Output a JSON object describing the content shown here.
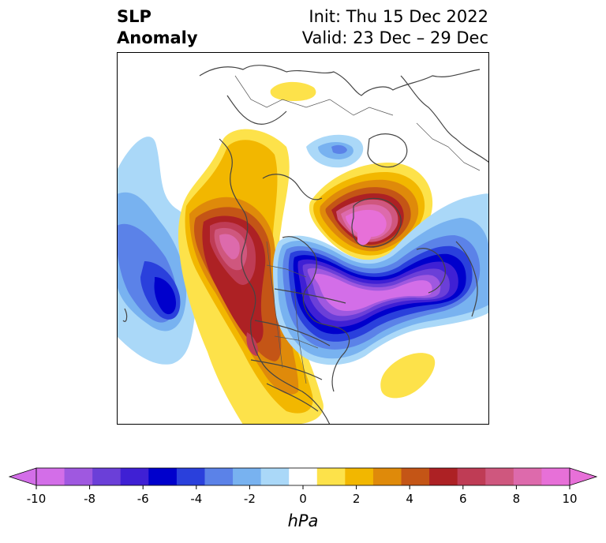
{
  "title": {
    "left_line1": "SLP",
    "left_line2": "Anomaly",
    "init": "Init: Thu 15 Dec 2022",
    "valid": "Valid: 23 Dec – 29 Dec"
  },
  "colorbar": {
    "unit_label": "hPa",
    "ticks": [
      "-10",
      "-8",
      "-6",
      "-4",
      "-2",
      "0",
      "2",
      "4",
      "6",
      "8",
      "10"
    ],
    "tick_values": [
      -10,
      -8,
      -6,
      -4,
      -2,
      0,
      2,
      4,
      6,
      8,
      10
    ],
    "colors": [
      "#d36ee8",
      "#9f58e0",
      "#6b3fd8",
      "#3f20d4",
      "#0000cc",
      "#2a40dc",
      "#5b82e8",
      "#78b2f0",
      "#aad8f8",
      "#ffffff",
      "#fde24a",
      "#f2b700",
      "#df8a0a",
      "#c45516",
      "#ad2124",
      "#bf3c55",
      "#cf577e",
      "#dd6aac",
      "#e770d8"
    ],
    "extend_min_color": "#d36ee8",
    "extend_max_color": "#e770d8"
  }
}
